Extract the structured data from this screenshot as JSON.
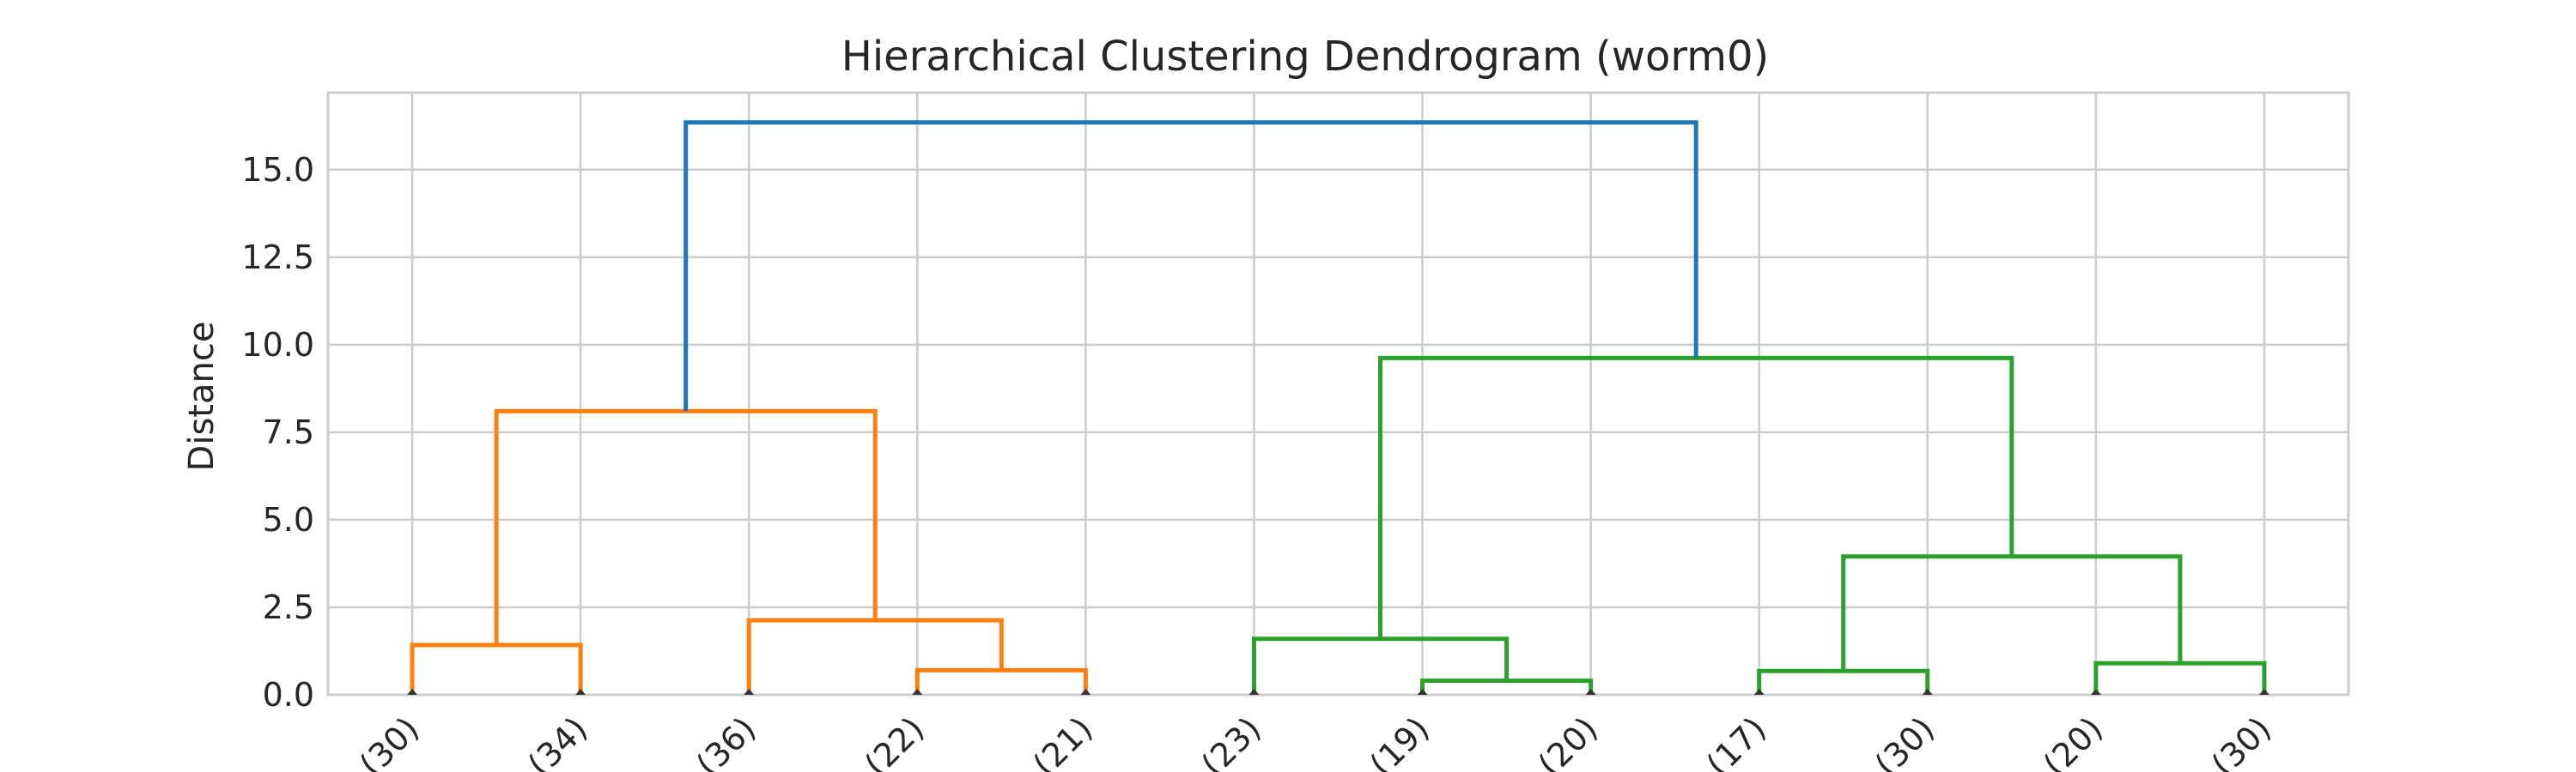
{
  "chart_data": {
    "type": "dendrogram",
    "title": "Hierarchical Clustering Dendrogram (worm0)",
    "ylabel": "Distance",
    "xlabel": "",
    "ylim": [
      0,
      17.2
    ],
    "yticks": [
      0.0,
      2.5,
      5.0,
      7.5,
      10.0,
      12.5,
      15.0
    ],
    "grid": true,
    "leaf_labels": [
      "(30)",
      "(34)",
      "(36)",
      "(22)",
      "(21)",
      "(23)",
      "(19)",
      "(20)",
      "(17)",
      "(30)",
      "(20)",
      "(30)"
    ],
    "links": [
      {
        "left": 0,
        "right": 1,
        "distance": 1.42,
        "color": "#ff7f0e"
      },
      {
        "left": 3,
        "right": 4,
        "distance": 0.7,
        "color": "#ff7f0e"
      },
      {
        "left": 2,
        "right": "c1",
        "distance": 2.13,
        "color": "#ff7f0e"
      },
      {
        "left": "c0",
        "right": "c2",
        "distance": 8.1,
        "color": "#ff7f0e"
      },
      {
        "left": 6,
        "right": 7,
        "distance": 0.4,
        "color": "#2ca02c"
      },
      {
        "left": 5,
        "right": "c4",
        "distance": 1.6,
        "color": "#2ca02c"
      },
      {
        "left": 8,
        "right": 9,
        "distance": 0.68,
        "color": "#2ca02c"
      },
      {
        "left": 10,
        "right": 11,
        "distance": 0.9,
        "color": "#2ca02c"
      },
      {
        "left": "c6",
        "right": "c7",
        "distance": 3.95,
        "color": "#2ca02c"
      },
      {
        "left": "c5",
        "right": "c8",
        "distance": 9.62,
        "color": "#2ca02c"
      },
      {
        "left": "c3",
        "right": "c9",
        "distance": 16.35,
        "color": "#1f77b4"
      }
    ]
  }
}
